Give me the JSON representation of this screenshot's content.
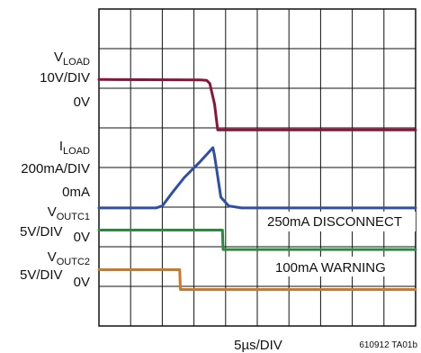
{
  "chart_data": {
    "type": "line",
    "x_unit": "divisions",
    "xlim": [
      0,
      10
    ],
    "ylim": [
      0,
      8
    ],
    "grid": true,
    "x_scale_label": "5µs/DIV",
    "figure_code": "610912 TA01b",
    "channels": [
      {
        "id": "vload",
        "label_main": "V",
        "label_sub": "LOAD",
        "label_scale": "10V/DIV",
        "zero_label": "0V",
        "color": "#8a1538",
        "x": [
          0,
          3.2,
          3.4,
          3.5,
          3.65,
          3.75,
          4.2,
          10
        ],
        "y": [
          6.22,
          6.21,
          6.2,
          6.12,
          5.6,
          4.95,
          4.95,
          4.95
        ]
      },
      {
        "id": "iload",
        "label_main": "I",
        "label_sub": "LOAD",
        "label_scale": "200mA/DIV",
        "zero_label": "0mA",
        "color": "#2e4fa3",
        "x": [
          0,
          1.8,
          2.0,
          2.3,
          2.7,
          3.2,
          3.6,
          3.65,
          3.85,
          4.1,
          4.5,
          10
        ],
        "y": [
          2.98,
          2.98,
          3.03,
          3.35,
          3.75,
          4.15,
          4.5,
          4.3,
          3.25,
          3.03,
          2.98,
          2.98
        ]
      },
      {
        "id": "voutc1",
        "label_main": "V",
        "label_sub": "OUTC1",
        "label_scale": "5V/DIV",
        "zero_label": "0V",
        "color": "#2a8a3e",
        "x": [
          0,
          3.9,
          3.92,
          10
        ],
        "y": [
          2.42,
          2.42,
          1.93,
          1.93
        ],
        "annotation": "250mA DISCONNECT"
      },
      {
        "id": "voutc2",
        "label_main": "V",
        "label_sub": "OUTC2",
        "label_scale": "5V/DIV",
        "zero_label": "0V",
        "color": "#c97a28",
        "x": [
          0,
          2.55,
          2.57,
          10
        ],
        "y": [
          1.42,
          1.42,
          0.92,
          0.92
        ],
        "annotation": "100mA WARNING"
      }
    ]
  }
}
